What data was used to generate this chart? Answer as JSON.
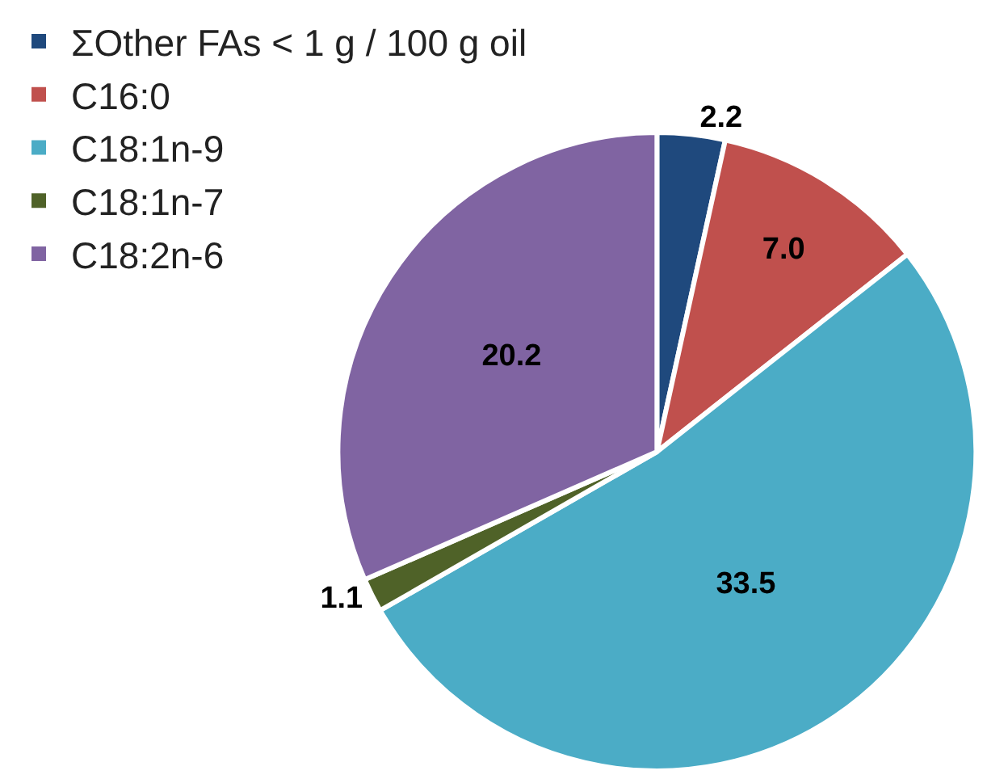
{
  "chart_data": {
    "type": "pie",
    "categories": [
      "ΣOther FAs < 1 g / 100 g oil",
      "C16:0",
      "C18:1n-9",
      "C18:1n-7",
      "C18:2n-6"
    ],
    "values": [
      2.2,
      7.0,
      33.5,
      1.1,
      20.2
    ],
    "colors": [
      "#1f497d",
      "#c0504d",
      "#4bacc6",
      "#4f6228",
      "#8064a2"
    ],
    "value_labels": [
      "2.2",
      "7.0",
      "33.5",
      "1.1",
      "20.2"
    ],
    "legend": "left"
  }
}
